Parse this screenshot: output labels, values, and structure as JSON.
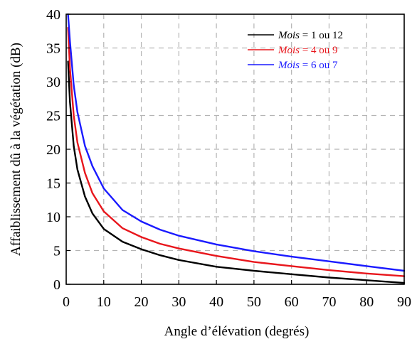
{
  "chart_data": {
    "type": "line",
    "title": "",
    "xlabel": "Angle d’élévation (degrés)",
    "ylabel": "Affaiblissement dû à  la végétation (dB)",
    "xlim": [
      0,
      90
    ],
    "ylim": [
      0,
      40
    ],
    "x_ticks": [
      0,
      10,
      20,
      30,
      40,
      50,
      60,
      70,
      80,
      90
    ],
    "y_ticks": [
      0,
      5,
      10,
      15,
      20,
      25,
      30,
      35,
      40
    ],
    "grid": true,
    "grid_style": "dashed",
    "legend_position": "top-right",
    "x": [
      0.5,
      1,
      2,
      3,
      5,
      7,
      10,
      15,
      20,
      25,
      30,
      40,
      50,
      60,
      70,
      80,
      90
    ],
    "series": [
      {
        "name_prefix": "Mois",
        "name_suffix": " = 1 ou 12",
        "color": "#000000",
        "values": [
          33,
          27,
          20.5,
          17,
          13,
          10.5,
          8.2,
          6.3,
          5.2,
          4.3,
          3.6,
          2.6,
          2.0,
          1.5,
          1.0,
          0.6,
          0.2
        ]
      },
      {
        "name_prefix": "Mois",
        "name_suffix": " = 4 ou 9",
        "color": "#e8161c",
        "values": [
          38,
          32,
          25,
          21,
          16.5,
          13.5,
          10.8,
          8.3,
          7.0,
          6.0,
          5.3,
          4.2,
          3.3,
          2.7,
          2.1,
          1.6,
          1.2
        ]
      },
      {
        "name_prefix": "Mois",
        "name_suffix": " = 6 ou 7",
        "color": "#1a1aff",
        "values": [
          40.5,
          36,
          29.5,
          25.5,
          20.5,
          17.5,
          14.2,
          11.0,
          9.3,
          8.1,
          7.2,
          5.9,
          4.9,
          4.1,
          3.4,
          2.7,
          2.0
        ]
      }
    ]
  }
}
